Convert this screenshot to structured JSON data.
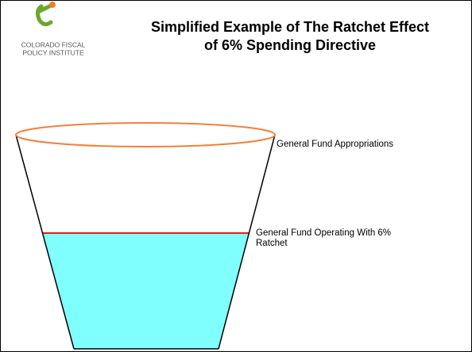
{
  "logo": {
    "lines": [
      "COLORADO FISCAL",
      "POLICY INSTITUTE"
    ]
  },
  "title": [
    "Simplified Example of The Ratchet Effect",
    "of 6% Spending Directive"
  ],
  "labels": {
    "top": [
      "General Fund Appropriations"
    ],
    "level": [
      "General Fund Operating With 6%",
      "Ratchet"
    ]
  }
}
